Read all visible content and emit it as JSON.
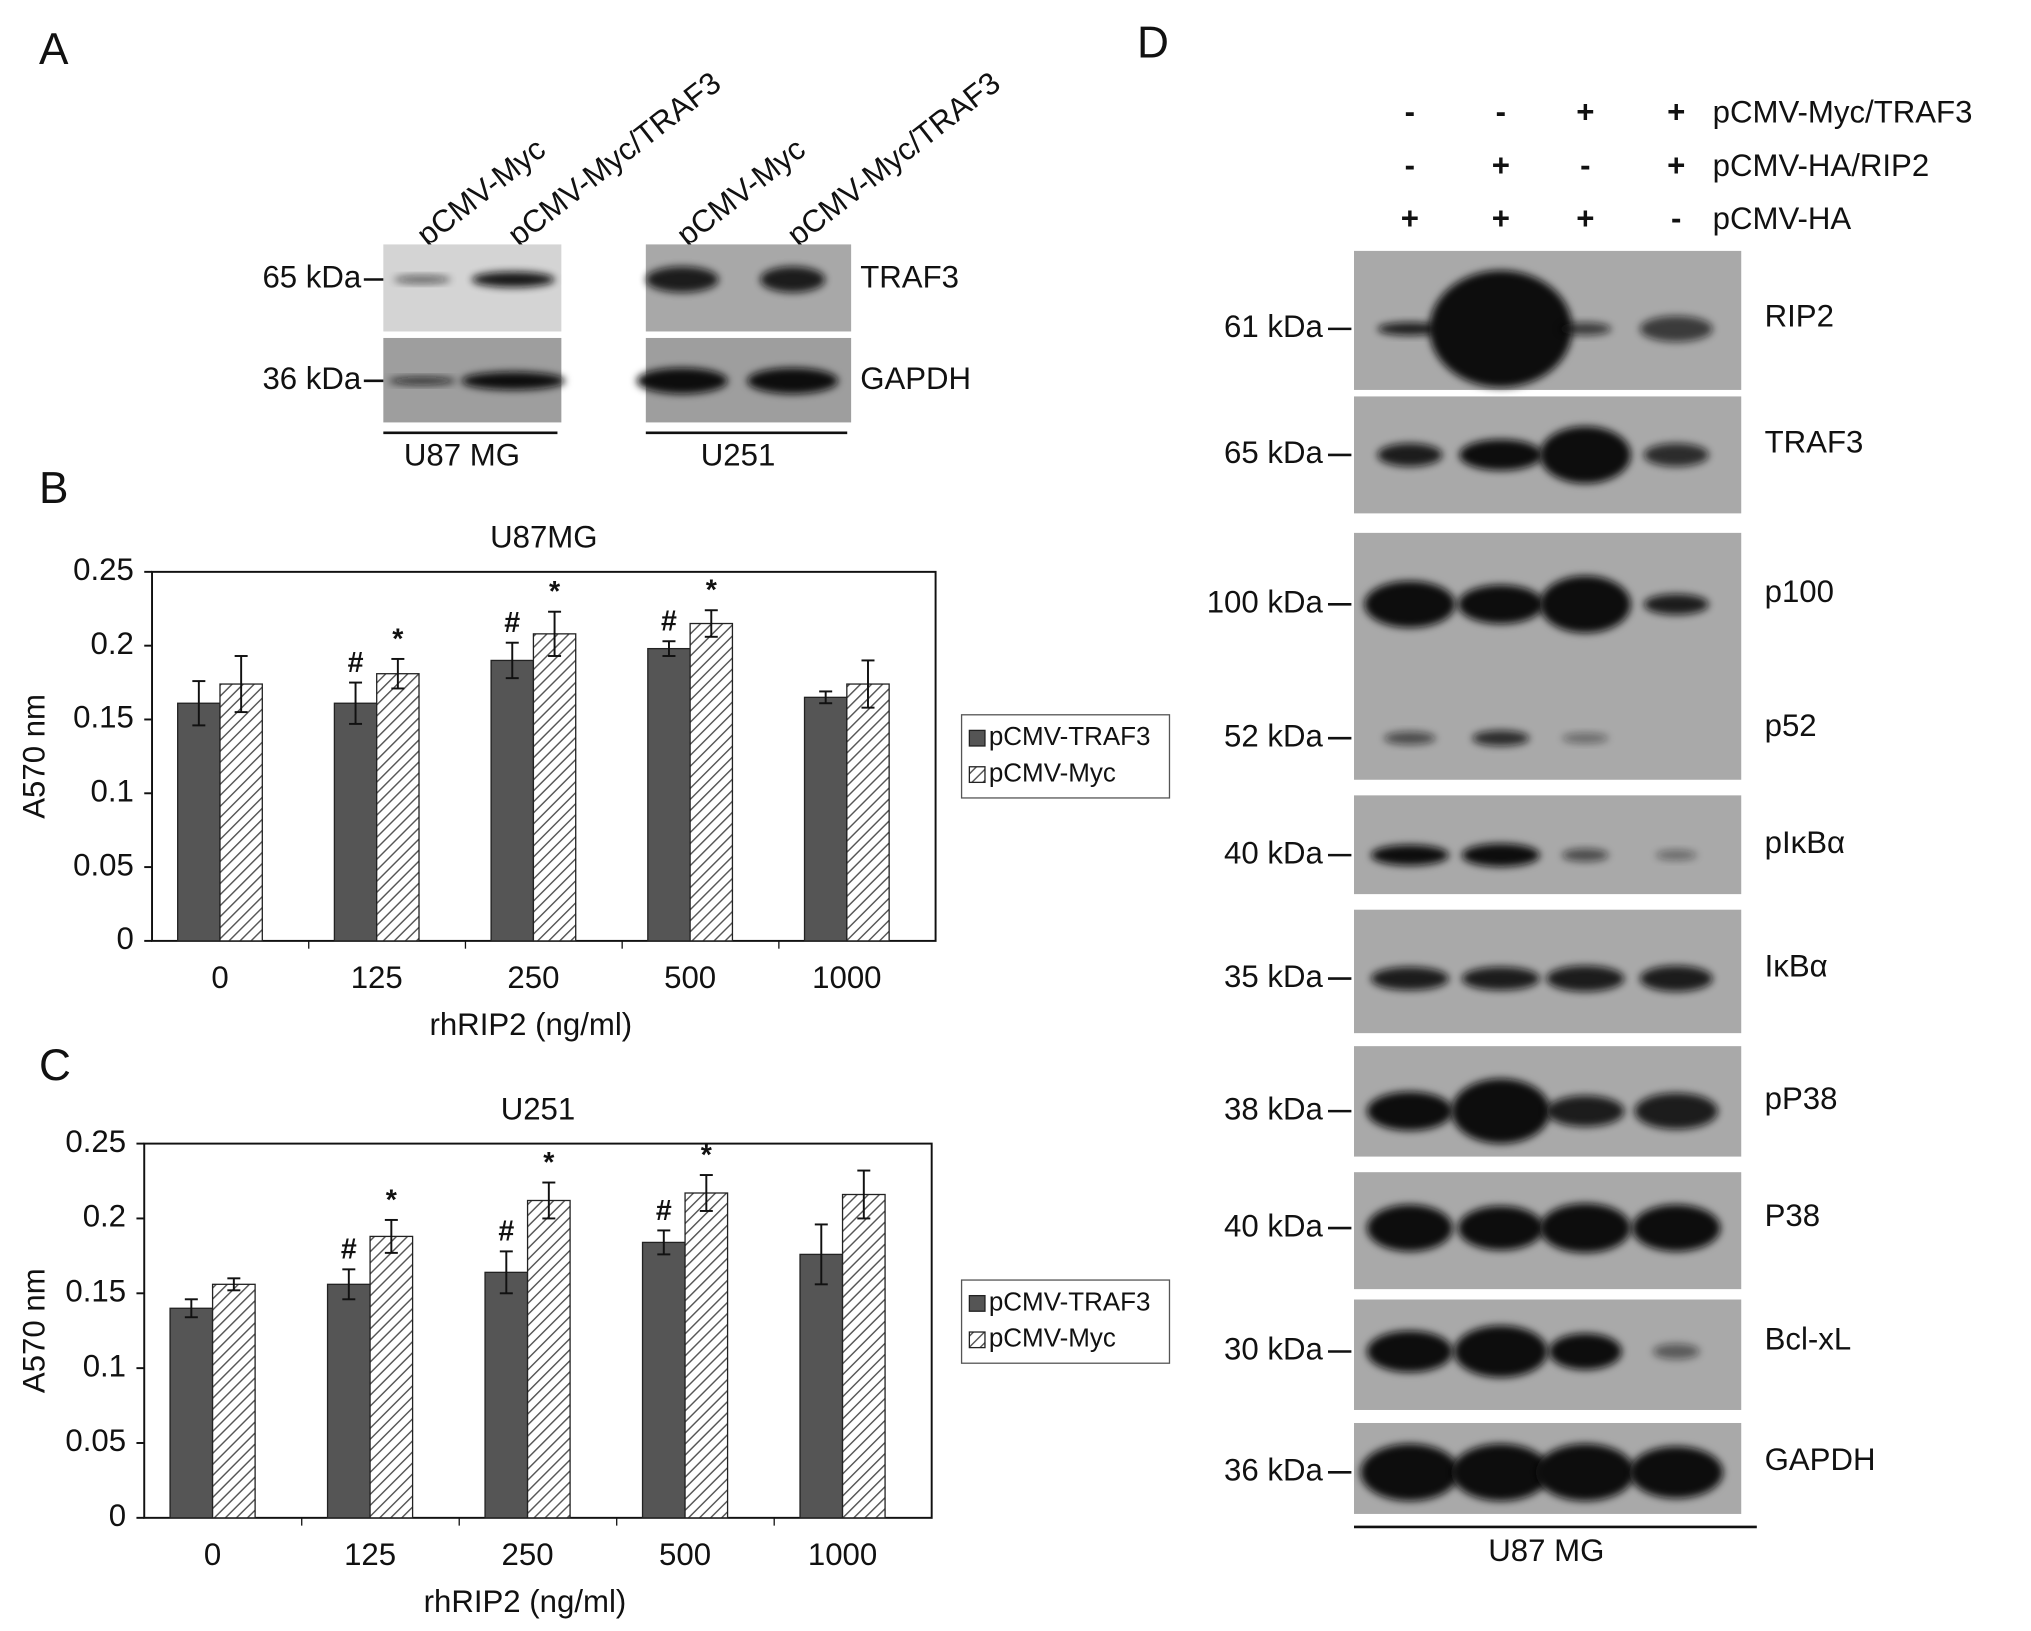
{
  "panel_labels": [
    "A",
    "B",
    "C",
    "D"
  ],
  "panel_a": {
    "lanes": [
      "pCMV-Myc",
      "pCMV-Myc/TRAF3",
      "pCMV-Myc",
      "pCMV-Myc/TRAF3"
    ],
    "markers": [
      "65 kDa",
      "36 kDa"
    ],
    "bands": [
      "TRAF3",
      "GAPDH"
    ],
    "cell_lines": [
      "U87 MG",
      "U251"
    ]
  },
  "chart_data": [
    {
      "type": "bar",
      "title": "U87MG",
      "x_label": "rhRIP2 (ng/ml)",
      "y_label": "A570 nm",
      "categories": [
        "0",
        "125",
        "250",
        "500",
        "1000"
      ],
      "series": [
        {
          "name": "pCMV-TRAF3",
          "color": "#555555",
          "values": [
            0.161,
            0.161,
            0.19,
            0.198,
            0.165
          ],
          "errors": [
            0.015,
            0.014,
            0.012,
            0.005,
            0.004
          ],
          "markers": [
            null,
            "#",
            "#",
            "#",
            null
          ]
        },
        {
          "name": "pCMV-Myc",
          "color": "#8c8c8c",
          "hatch": true,
          "values": [
            0.174,
            0.181,
            0.208,
            0.215,
            0.174
          ],
          "errors": [
            0.019,
            0.01,
            0.015,
            0.009,
            0.016
          ],
          "markers": [
            null,
            "*",
            "*",
            "*",
            null
          ]
        }
      ],
      "ylim": [
        0,
        0.25
      ],
      "yticks": [
        0,
        0.05,
        0.1,
        0.15,
        0.2,
        0.25
      ],
      "grid": false,
      "legend": "right"
    },
    {
      "type": "bar",
      "title": "U251",
      "x_label": "rhRIP2 (ng/ml)",
      "y_label": "A570 nm",
      "categories": [
        "0",
        "125",
        "250",
        "500",
        "1000"
      ],
      "series": [
        {
          "name": "pCMV-TRAF3",
          "color": "#555555",
          "values": [
            0.14,
            0.156,
            0.164,
            0.184,
            0.176
          ],
          "errors": [
            0.006,
            0.01,
            0.014,
            0.008,
            0.02
          ],
          "markers": [
            null,
            "#",
            "#",
            "#",
            null
          ]
        },
        {
          "name": "pCMV-Myc",
          "color": "#8c8c8c",
          "hatch": true,
          "values": [
            0.156,
            0.188,
            0.212,
            0.217,
            0.216
          ],
          "errors": [
            0.004,
            0.011,
            0.012,
            0.012,
            0.016
          ],
          "markers": [
            null,
            "*",
            "*",
            "*",
            null
          ]
        }
      ],
      "ylim": [
        0,
        0.25
      ],
      "yticks": [
        0,
        0.05,
        0.1,
        0.15,
        0.2,
        0.25
      ],
      "grid": false,
      "legend": "right"
    }
  ],
  "panel_d": {
    "conditions": [
      {
        "label": "pCMV-Myc/TRAF3",
        "signs": [
          "-",
          "-",
          "+",
          "+"
        ]
      },
      {
        "label": "pCMV-HA/RIP2",
        "signs": [
          "-",
          "+",
          "-",
          "+"
        ]
      },
      {
        "label": "pCMV-HA",
        "signs": [
          "+",
          "+",
          "+",
          "-"
        ]
      }
    ],
    "blots": [
      {
        "markers": [
          "61 kDa"
        ],
        "bands": [
          "RIP2"
        ]
      },
      {
        "markers": [
          "65 kDa"
        ],
        "bands": [
          "TRAF3"
        ]
      },
      {
        "markers": [
          "100 kDa",
          "52 kDa"
        ],
        "bands": [
          "p100",
          "p52"
        ]
      },
      {
        "markers": [
          "40 kDa"
        ],
        "bands": [
          "pIκBα"
        ]
      },
      {
        "markers": [
          "35 kDa"
        ],
        "bands": [
          "IκBα"
        ]
      },
      {
        "markers": [
          "38 kDa"
        ],
        "bands": [
          "pP38"
        ]
      },
      {
        "markers": [
          "40 kDa"
        ],
        "bands": [
          "P38"
        ]
      },
      {
        "markers": [
          "30 kDa"
        ],
        "bands": [
          "Bcl-xL"
        ]
      },
      {
        "markers": [
          "36 kDa"
        ],
        "bands": [
          "GAPDH"
        ]
      }
    ],
    "cell_line": "U87 MG"
  }
}
